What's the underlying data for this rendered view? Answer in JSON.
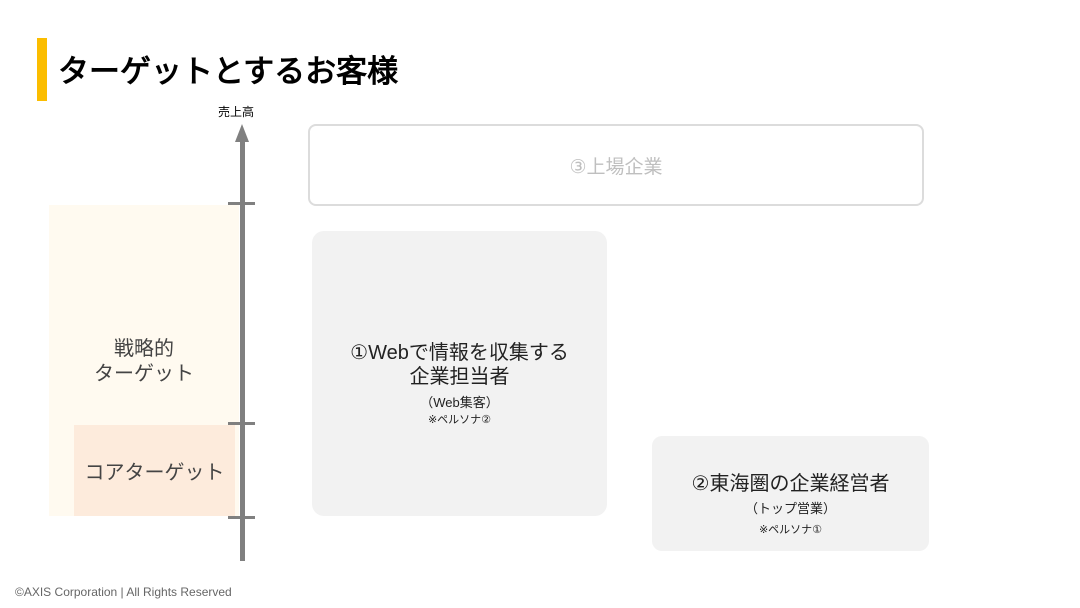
{
  "title": "ターゲットとするお客様",
  "axis": {
    "label": "売上高"
  },
  "segments": {
    "strategic": "戦略的\nターゲット",
    "strategic_line1": "戦略的",
    "strategic_line2": "ターゲット",
    "core": "コアターゲット"
  },
  "boxes": {
    "listed": {
      "label": "③上場企業"
    },
    "web": {
      "line1": "①Webで情報を収集する",
      "line2": "企業担当者",
      "sub": "（Web集客）",
      "note": "※ペルソナ②"
    },
    "tokai": {
      "line1": "②東海圏の企業経営者",
      "sub": "（トップ営業）",
      "note": "※ペルソナ①"
    }
  },
  "colors": {
    "accent": "#fbbd00",
    "strategic_bg": "#fffaf0",
    "core_bg": "#fdebdc",
    "box_bg": "#f2f2f2",
    "axis": "#808080"
  },
  "footer": "©AXIS Corporation | All Rights Reserved"
}
